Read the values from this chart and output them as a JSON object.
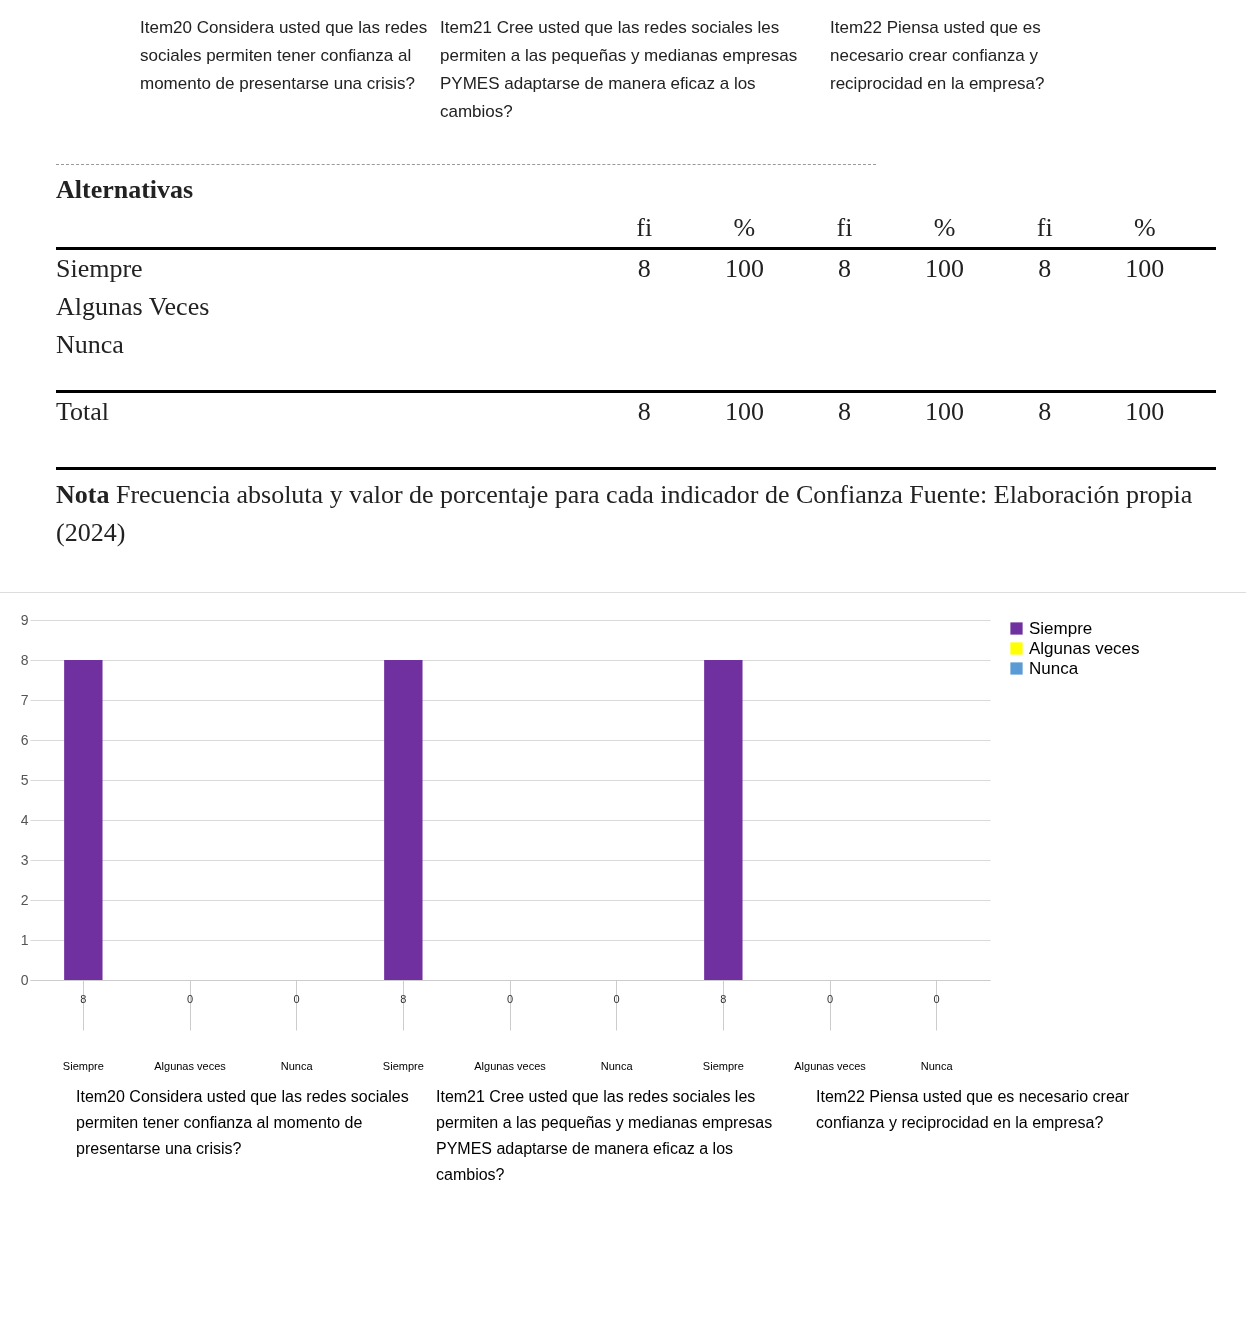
{
  "chart_data": [
    {
      "type": "other",
      "annotations": [
        "Item20 Considera usted que las redes sociales permiten tener confianza al momento de presentarse una crisis?",
        "Item21 Cree usted que las redes sociales les permiten a las pequeñas y medianas empresas PYMES adaptarse de manera eficaz a los cambios?",
        "Item22 Piensa usted que es necesario crear confianza y reciprocidad en la empresa?",
        "Alternativas",
        "fi",
        "%",
        "fi",
        "%",
        "fi",
        "%",
        "Siempre",
        "8",
        "100",
        "8",
        "100",
        "8",
        "100",
        "Algunas Veces",
        "Nunca",
        "Total",
        "8",
        "100",
        "8",
        "100",
        "8",
        "100",
        "Nota",
        "Frecuencia absoluta y valor de porcentaje para cada indicador de Confianza Fuente: Elaboración propia (2024)"
      ]
    },
    {
      "type": "bar",
      "categories": [
        "Siempre",
        "Algunas veces",
        "Nunca",
        "Siempre",
        "Algunas veces",
        "Nunca",
        "Siempre",
        "Algunas veces",
        "Nunca"
      ],
      "series": [
        {
          "name": "Siempre",
          "color": "#7030a0",
          "values": [
            8,
            null,
            null,
            8,
            null,
            null,
            8,
            null,
            null
          ]
        },
        {
          "name": "Algunas veces",
          "color": "#ffff00",
          "values": [
            null,
            0,
            null,
            null,
            0,
            null,
            null,
            0,
            null
          ]
        },
        {
          "name": "Nunca",
          "color": "#5b9bd5",
          "values": [
            null,
            null,
            0,
            null,
            null,
            0,
            null,
            null,
            0
          ]
        }
      ],
      "ylim": [
        0,
        9
      ],
      "yticks": [
        0,
        1,
        2,
        3,
        4,
        5,
        6,
        7,
        8,
        9
      ],
      "grid": "y",
      "legend": "right",
      "data_labels": true,
      "annotations": [
        "Item20 Considera usted que las redes sociales permiten tener confianza al momento de presentarse una crisis?",
        "Item21 Cree usted que las redes sociales les permiten a las pequeñas y medianas empresas PYMES adaptarse de manera eficaz a los cambios?",
        "Item22 Piensa usted que es necesario crear confianza y reciprocidad en la empresa?"
      ]
    }
  ]
}
